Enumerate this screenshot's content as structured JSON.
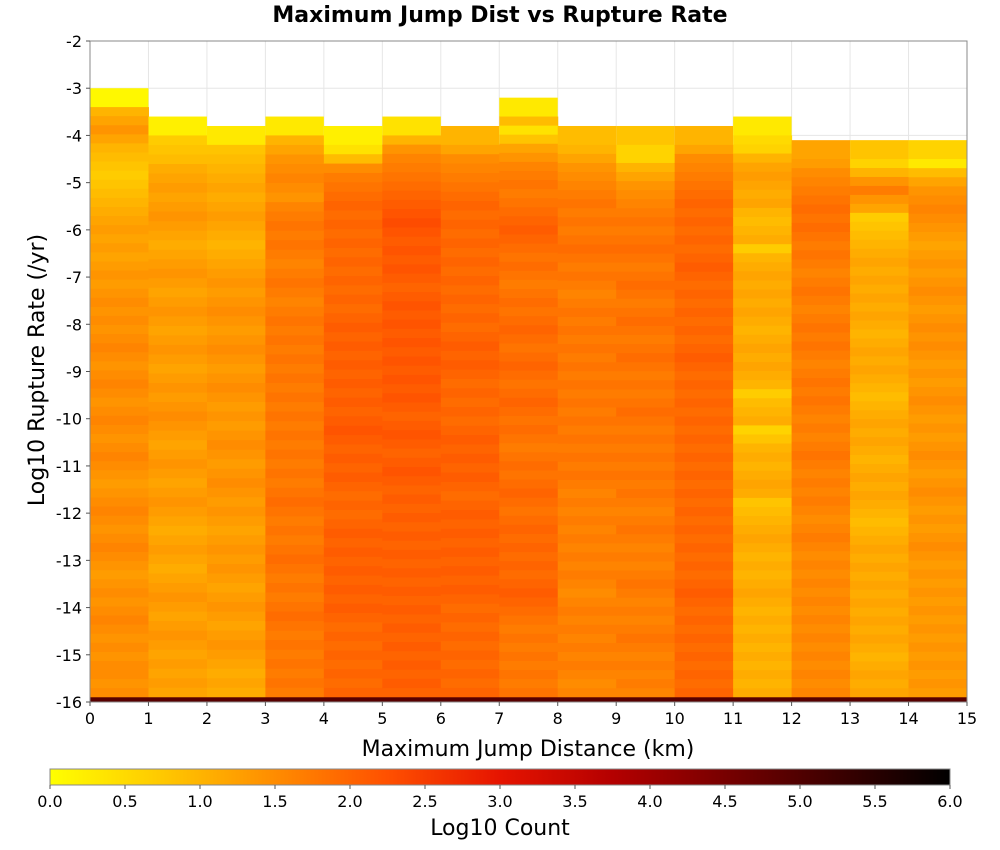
{
  "chart_data": {
    "type": "heatmap",
    "title": "Maximum Jump Dist vs Rupture Rate",
    "xlabel": "Maximum Jump Distance (km)",
    "ylabel": "Log10 Rupture Rate (/yr)",
    "colorbar_label": "Log10 Count",
    "xlim": [
      0,
      15
    ],
    "ylim": [
      -16,
      -2
    ],
    "x_ticks": [
      "0",
      "1",
      "2",
      "3",
      "4",
      "5",
      "6",
      "7",
      "8",
      "9",
      "10",
      "11",
      "12",
      "13",
      "14",
      "15"
    ],
    "y_ticks": [
      "-2",
      "-3",
      "-4",
      "-5",
      "-6",
      "-7",
      "-8",
      "-9",
      "-10",
      "-11",
      "-12",
      "-13",
      "-14",
      "-15",
      "-16"
    ],
    "color_range": [
      0.0,
      6.0
    ],
    "colorbar_ticks": [
      "0.0",
      "0.5",
      "1.0",
      "1.5",
      "2.0",
      "2.5",
      "3.0",
      "3.5",
      "4.0",
      "4.5",
      "5.0",
      "5.5",
      "6.0"
    ],
    "colormap": [
      "#ffff00",
      "#ffc800",
      "#ff8c00",
      "#ff5000",
      "#e61400",
      "#b40000",
      "#780000",
      "#3c0000",
      "#000000"
    ],
    "cell_size": {
      "x": 1,
      "y": 0.2
    },
    "bins": [
      {
        "x": 0,
        "y_top": -3.0,
        "y_bottom": -16.0,
        "top_value": 0.1,
        "values": [
          1.0,
          1.2,
          1.4,
          1.2,
          1.0,
          0.9,
          0.8,
          0.7,
          0.8,
          0.9,
          1.0,
          1.1,
          1.2,
          1.3,
          1.2,
          1.3,
          1.2,
          1.3,
          1.4,
          1.3,
          1.4,
          1.5,
          1.4,
          1.5,
          1.4,
          1.5,
          1.6,
          1.5,
          1.4,
          1.5,
          1.6,
          1.5,
          1.4,
          1.5,
          1.6,
          1.5,
          1.4,
          1.5,
          1.6,
          1.5,
          1.4,
          1.3,
          1.4,
          1.5,
          1.6,
          1.5,
          1.4,
          1.5,
          1.6,
          1.5,
          1.4,
          1.3,
          1.4,
          1.5,
          1.4,
          1.5,
          1.6,
          1.5,
          1.4,
          1.5,
          1.4,
          1.5,
          1.5,
          1.4,
          1.5
        ]
      },
      {
        "x": 1,
        "y_top": -3.6,
        "y_bottom": -16.0,
        "top_value": 0.2,
        "values": [
          0.7,
          0.8,
          0.9,
          1.1,
          1.2,
          1.3,
          1.2,
          1.3,
          1.4,
          1.3,
          1.2,
          1.1,
          1.2,
          1.3,
          1.4,
          1.3,
          1.2,
          1.3,
          1.4,
          1.3,
          1.2,
          1.3,
          1.4,
          1.3,
          1.2,
          1.3,
          1.4,
          1.3,
          1.4,
          1.5,
          1.4,
          1.3,
          1.2,
          1.3,
          1.4,
          1.3,
          1.2,
          1.3,
          1.4,
          1.3,
          1.2,
          1.1,
          1.2,
          1.3,
          1.2,
          1.1,
          1.2,
          1.3,
          1.4,
          1.3,
          1.2,
          1.3,
          1.4,
          1.3,
          1.2,
          1.3,
          1.2,
          1.3,
          1.2
        ]
      },
      {
        "x": 2,
        "y_top": -3.8,
        "y_bottom": -16.0,
        "top_value": 0.3,
        "values": [
          0.8,
          0.9,
          1.0,
          1.1,
          1.2,
          1.1,
          1.2,
          1.3,
          1.2,
          1.1,
          1.0,
          1.1,
          1.2,
          1.3,
          1.4,
          1.3,
          1.4,
          1.5,
          1.4,
          1.3,
          1.4,
          1.5,
          1.4,
          1.3,
          1.4,
          1.5,
          1.4,
          1.3,
          1.4,
          1.3,
          1.4,
          1.5,
          1.4,
          1.3,
          1.4,
          1.5,
          1.4,
          1.3,
          1.4,
          1.3,
          1.2,
          1.3,
          1.4,
          1.3,
          1.4,
          1.3,
          1.2,
          1.3,
          1.4,
          1.3,
          1.2,
          1.3,
          1.4,
          1.3,
          1.2,
          1.1,
          1.2,
          1.1
        ]
      },
      {
        "x": 3,
        "y_top": -3.6,
        "y_bottom": -16.0,
        "top_value": 0.3,
        "values": [
          1.0,
          1.2,
          1.4,
          1.5,
          1.6,
          1.5,
          1.4,
          1.6,
          1.7,
          1.8,
          1.7,
          1.8,
          1.7,
          1.6,
          1.7,
          1.8,
          1.7,
          1.6,
          1.7,
          1.8,
          1.7,
          1.8,
          1.7,
          1.8,
          1.7,
          1.8,
          1.7,
          1.8,
          1.7,
          1.8,
          1.7,
          1.8,
          1.7,
          1.8,
          1.7,
          1.8,
          1.7,
          1.8,
          1.9,
          1.8,
          1.7,
          1.8,
          1.7,
          1.8,
          1.9,
          1.8,
          1.7,
          1.8,
          1.7,
          1.8,
          1.9,
          1.8,
          1.7,
          1.8,
          1.7,
          1.8,
          1.7,
          1.8,
          1.7
        ]
      },
      {
        "x": 4,
        "y_top": -3.8,
        "y_bottom": -16.0,
        "top_value": 0.2,
        "values": [
          0.4,
          0.9,
          1.5,
          1.7,
          1.8,
          1.9,
          2.0,
          1.9,
          2.0,
          1.9,
          2.0,
          1.9,
          2.0,
          1.9,
          2.0,
          1.9,
          2.0,
          1.9,
          2.0,
          2.1,
          2.0,
          2.1,
          2.0,
          2.1,
          2.0,
          2.1,
          2.0,
          2.1,
          2.0,
          2.1,
          2.2,
          2.1,
          2.0,
          2.1,
          2.0,
          2.1,
          2.0,
          1.9,
          2.0,
          1.9,
          2.0,
          2.1,
          2.0,
          2.1,
          2.0,
          2.1,
          2.0,
          2.1,
          2.0,
          2.1,
          2.0,
          1.9,
          2.0,
          1.9,
          2.0,
          1.9,
          2.0,
          1.9,
          2.0
        ]
      },
      {
        "x": 5,
        "y_top": -3.6,
        "y_bottom": -16.0,
        "top_value": 0.4,
        "values": [
          1.0,
          1.4,
          1.6,
          1.7,
          1.8,
          1.9,
          2.0,
          2.1,
          2.2,
          2.3,
          2.2,
          2.1,
          2.2,
          2.1,
          2.2,
          2.1,
          2.0,
          2.1,
          2.2,
          2.1,
          2.2,
          2.1,
          2.2,
          2.1,
          2.2,
          2.1,
          2.2,
          2.1,
          2.2,
          2.1,
          2.0,
          2.1,
          2.2,
          2.1,
          2.0,
          2.1,
          2.2,
          2.1,
          2.0,
          2.1,
          2.0,
          2.1,
          2.0,
          2.1,
          2.0,
          2.1,
          2.0,
          2.1,
          2.0,
          2.1,
          2.0,
          2.1,
          2.0,
          2.1,
          2.0,
          2.1,
          2.0,
          2.1,
          2.0,
          2.1,
          2.0
        ]
      },
      {
        "x": 6,
        "y_top": -3.8,
        "y_bottom": -16.0,
        "top_value": 1.0,
        "values": [
          1.2,
          1.5,
          1.6,
          1.7,
          1.8,
          1.9,
          2.0,
          1.9,
          2.0,
          1.9,
          2.0,
          1.9,
          2.0,
          1.9,
          2.0,
          1.9,
          2.0,
          1.9,
          2.0,
          1.9,
          2.0,
          2.1,
          2.0,
          2.1,
          2.0,
          1.9,
          2.0,
          1.9,
          2.0,
          1.9,
          2.0,
          2.1,
          2.0,
          2.1,
          2.0,
          2.1,
          2.0,
          1.9,
          2.0,
          2.1,
          2.0,
          2.1,
          2.0,
          2.1,
          2.0,
          2.1,
          2.0,
          2.1,
          2.0,
          1.9,
          2.0,
          1.9,
          2.0,
          1.9,
          2.0,
          1.9,
          2.0,
          1.9,
          2.0
        ]
      },
      {
        "x": 7,
        "y_top": -3.2,
        "y_bottom": -16.0,
        "top_value": 0.3,
        "values": [
          0.9,
          0.4,
          0.8,
          1.2,
          1.4,
          1.6,
          1.7,
          1.8,
          1.7,
          1.8,
          1.9,
          2.0,
          2.1,
          2.0,
          1.9,
          1.8,
          1.9,
          1.8,
          1.7,
          1.8,
          1.9,
          1.8,
          1.9,
          2.0,
          1.9,
          1.8,
          1.9,
          2.0,
          1.9,
          1.8,
          1.9,
          2.0,
          1.9,
          1.8,
          1.9,
          1.8,
          1.7,
          1.8,
          1.9,
          1.8,
          1.9,
          2.0,
          1.9,
          1.8,
          1.9,
          2.0,
          1.9,
          2.0,
          1.9,
          2.0,
          1.9,
          2.0,
          2.1,
          2.0,
          1.9,
          1.8,
          1.7,
          1.8,
          1.7,
          1.8,
          1.7,
          1.8,
          1.7,
          1.8
        ]
      },
      {
        "x": 8,
        "y_top": -3.8,
        "y_bottom": -16.0,
        "top_value": 0.9,
        "values": [
          1.0,
          1.2,
          1.4,
          1.5,
          1.6,
          1.7,
          1.8,
          1.7,
          1.8,
          1.7,
          1.8,
          1.9,
          1.8,
          1.7,
          1.8,
          1.7,
          1.6,
          1.7,
          1.8,
          1.7,
          1.8,
          1.7,
          1.8,
          1.7,
          1.8,
          1.7,
          1.8,
          1.7,
          1.8,
          1.7,
          1.8,
          1.7,
          1.8,
          1.7,
          1.8,
          1.7,
          1.8,
          1.7,
          1.6,
          1.7,
          1.6,
          1.7,
          1.6,
          1.7,
          1.6,
          1.7,
          1.6,
          1.7,
          1.6,
          1.5,
          1.6,
          1.7,
          1.6,
          1.7,
          1.6,
          1.7,
          1.6,
          1.7,
          1.6,
          1.5,
          1.6
        ]
      },
      {
        "x": 9,
        "y_top": -3.8,
        "y_bottom": -16.0,
        "top_value": 0.8,
        "values": [
          0.6,
          0.6,
          1.0,
          1.2,
          1.4,
          1.5,
          1.6,
          1.7,
          1.8,
          1.7,
          1.8,
          1.9,
          1.8,
          1.7,
          1.8,
          1.9,
          1.8,
          1.7,
          1.8,
          1.9,
          1.8,
          1.7,
          1.8,
          1.9,
          1.8,
          1.7,
          1.8,
          1.7,
          1.8,
          1.9,
          1.8,
          1.7,
          1.8,
          1.7,
          1.8,
          1.7,
          1.8,
          1.7,
          1.8,
          1.7,
          1.6,
          1.7,
          1.8,
          1.7,
          1.6,
          1.7,
          1.6,
          1.7,
          1.8,
          1.7,
          1.6,
          1.7,
          1.6,
          1.7,
          1.8,
          1.7,
          1.6,
          1.7,
          1.6,
          1.7,
          1.6
        ]
      },
      {
        "x": 10,
        "y_top": -3.8,
        "y_bottom": -16.0,
        "top_value": 1.0,
        "values": [
          1.2,
          1.5,
          1.6,
          1.7,
          1.8,
          1.9,
          2.0,
          1.9,
          2.0,
          1.9,
          2.0,
          1.9,
          2.0,
          2.1,
          2.0,
          1.9,
          2.0,
          1.9,
          2.0,
          1.9,
          2.0,
          1.9,
          2.0,
          2.1,
          2.0,
          1.9,
          2.0,
          1.9,
          2.0,
          1.9,
          2.0,
          1.9,
          2.0,
          1.9,
          2.0,
          1.9,
          2.0,
          1.9,
          2.0,
          1.9,
          2.0,
          1.9,
          2.0,
          1.9,
          2.0,
          1.9,
          2.0,
          1.9,
          2.0,
          2.1,
          2.0,
          1.9,
          2.0,
          1.9,
          2.0,
          1.9,
          2.0,
          1.9,
          2.0,
          1.9,
          2.0
        ]
      },
      {
        "x": 11,
        "y_top": -3.6,
        "y_bottom": -16.0,
        "top_value": 0.3,
        "values": [
          0.5,
          0.6,
          1.0,
          1.2,
          1.3,
          1.2,
          1.1,
          1.2,
          1.0,
          0.9,
          1.0,
          1.1,
          0.7,
          1.0,
          1.1,
          1.2,
          1.1,
          1.2,
          1.1,
          1.2,
          1.1,
          1.0,
          1.1,
          1.2,
          1.1,
          1.2,
          1.1,
          1.0,
          0.7,
          0.9,
          1.0,
          1.1,
          0.6,
          0.8,
          1.0,
          1.1,
          1.0,
          1.1,
          1.2,
          1.1,
          0.8,
          0.9,
          1.0,
          1.1,
          1.2,
          1.1,
          1.0,
          1.1,
          1.0,
          1.1,
          1.2,
          1.1,
          1.0,
          1.1,
          1.0,
          1.1,
          1.0,
          1.1,
          1.0,
          1.1,
          1.0,
          1.1
        ]
      },
      {
        "x": 12,
        "y_top": -4.1,
        "y_bottom": -16.0,
        "top_value": 1.2,
        "values": [
          1.3,
          1.5,
          1.6,
          1.7,
          1.8,
          1.9,
          1.8,
          1.9,
          1.8,
          1.7,
          1.8,
          1.7,
          1.6,
          1.7,
          1.8,
          1.7,
          1.6,
          1.7,
          1.8,
          1.7,
          1.8,
          1.7,
          1.6,
          1.7,
          1.8,
          1.7,
          1.8,
          1.7,
          1.6,
          1.7,
          1.6,
          1.7,
          1.8,
          1.7,
          1.6,
          1.7,
          1.6,
          1.7,
          1.6,
          1.5,
          1.6,
          1.7,
          1.6,
          1.5,
          1.6,
          1.5,
          1.6,
          1.5,
          1.6,
          1.5,
          1.6,
          1.5,
          1.6,
          1.5,
          1.6,
          1.5,
          1.6,
          1.5,
          1.6
        ]
      },
      {
        "x": 13,
        "y_top": -4.1,
        "y_bottom": -16.0,
        "top_value": 0.8,
        "values": [
          0.6,
          1.0,
          1.4,
          1.7,
          1.4,
          1.2,
          0.7,
          0.8,
          0.9,
          1.0,
          1.1,
          1.2,
          1.1,
          1.2,
          1.1,
          1.2,
          1.1,
          1.2,
          1.1,
          1.0,
          1.1,
          1.2,
          1.1,
          1.2,
          1.1,
          1.0,
          0.9,
          1.0,
          1.1,
          1.2,
          1.1,
          1.2,
          1.1,
          1.0,
          1.1,
          1.2,
          1.1,
          1.2,
          1.1,
          1.0,
          0.9,
          1.0,
          1.1,
          1.2,
          1.1,
          1.2,
          1.1,
          1.2,
          1.1,
          1.2,
          1.1,
          1.2,
          1.1,
          1.2,
          1.1,
          1.0,
          1.1,
          1.2,
          1.1,
          1.2
        ]
      },
      {
        "x": 14,
        "y_top": -4.1,
        "y_bottom": -16.0,
        "top_value": 0.6,
        "values": [
          0.3,
          0.9,
          1.2,
          1.4,
          1.5,
          1.6,
          1.5,
          1.4,
          1.3,
          1.2,
          1.3,
          1.4,
          1.3,
          1.4,
          1.5,
          1.4,
          1.3,
          1.4,
          1.5,
          1.4,
          1.5,
          1.4,
          1.3,
          1.4,
          1.3,
          1.4,
          1.5,
          1.4,
          1.3,
          1.4,
          1.3,
          1.4,
          1.5,
          1.4,
          1.3,
          1.4,
          1.5,
          1.4,
          1.3,
          1.4,
          1.3,
          1.4,
          1.5,
          1.4,
          1.3,
          1.4,
          1.3,
          1.4,
          1.3,
          1.4,
          1.3,
          1.4,
          1.3,
          1.4,
          1.3,
          1.4,
          1.3,
          1.4,
          1.3
        ]
      }
    ],
    "bottom_row": {
      "y_from": -16.0,
      "y_to": -15.9,
      "value": 4.9
    }
  }
}
